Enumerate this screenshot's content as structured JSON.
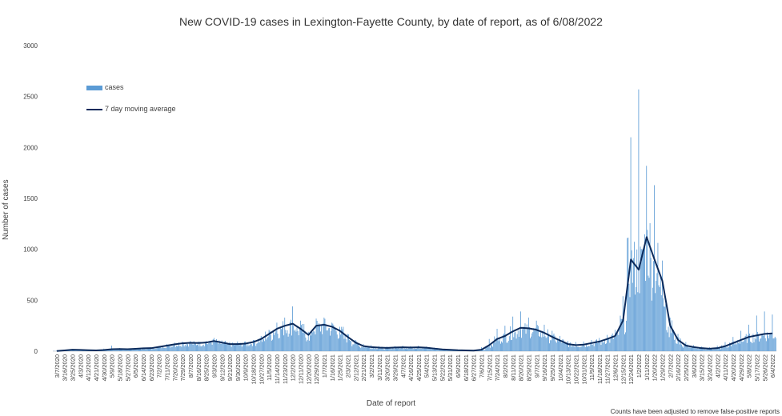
{
  "chart_data": {
    "type": "bar",
    "title": "New COVID-19 cases in Lexington-Fayette County, by date of report, as of 6/08/2022",
    "xlabel": "Date of report",
    "ylabel": "Number of cases",
    "ylim": [
      0,
      3000
    ],
    "yticks": [
      "0",
      "500",
      "1000",
      "1500",
      "2000",
      "2500",
      "3000"
    ],
    "footnote": "Counts have been adjusted to remove false-positive reports",
    "legend": {
      "bars": "cases",
      "line": "7 day moving average",
      "position": "top-left"
    },
    "colors": {
      "bars": "#5B9BD5",
      "line": "#0B2A5B"
    },
    "categories": [
      "3/7/2020",
      "3/16/2020",
      "3/25/2020",
      "4/3/2020",
      "4/12/2020",
      "4/21/2020",
      "4/30/2020",
      "5/9/2020",
      "5/18/2020",
      "5/27/2020",
      "6/5/2020",
      "6/14/2020",
      "6/23/2020",
      "7/2/2020",
      "7/11/2020",
      "7/20/2020",
      "7/29/2020",
      "8/7/2020",
      "8/16/2020",
      "8/25/2020",
      "9/3/2020",
      "9/12/2020",
      "9/21/2020",
      "9/30/2020",
      "10/9/2020",
      "10/18/2020",
      "10/27/2020",
      "11/5/2020",
      "11/14/2020",
      "11/23/2020",
      "12/2/2020",
      "12/11/2020",
      "12/20/2020",
      "12/29/2020",
      "1/7/2021",
      "1/16/2021",
      "1/25/2021",
      "2/3/2021",
      "2/12/2021",
      "2/21/2021",
      "3/2/2021",
      "3/11/2021",
      "3/20/2021",
      "3/29/2021",
      "4/7/2021",
      "4/16/2021",
      "4/25/2021",
      "5/4/2021",
      "5/13/2021",
      "5/22/2021",
      "5/31/2021",
      "6/9/2021",
      "6/18/2021",
      "6/27/2021",
      "7/6/2021",
      "7/15/2021",
      "7/24/2021",
      "8/2/2021",
      "8/11/2021",
      "8/20/2021",
      "8/29/2021",
      "9/7/2021",
      "9/16/2021",
      "9/25/2021",
      "10/4/2021",
      "10/13/2021",
      "10/22/2021",
      "10/31/2021",
      "11/9/2021",
      "11/18/2021",
      "11/27/2021",
      "12/6/2021",
      "12/15/2021",
      "12/24/2021",
      "1/2/2022",
      "1/11/2022",
      "1/20/2022",
      "1/29/2022",
      "2/7/2022",
      "2/16/2022",
      "2/25/2022",
      "3/6/2022",
      "3/15/2022",
      "3/24/2022",
      "4/2/2022",
      "4/11/2022",
      "4/20/2022",
      "4/29/2022",
      "5/8/2022",
      "5/17/2022",
      "5/26/2022",
      "6/4/2022"
    ],
    "cases_9day_peak": [
      5,
      12,
      20,
      18,
      15,
      12,
      25,
      55,
      30,
      25,
      30,
      32,
      38,
      50,
      70,
      85,
      95,
      100,
      95,
      100,
      130,
      105,
      90,
      95,
      95,
      110,
      150,
      210,
      280,
      330,
      440,
      300,
      190,
      320,
      330,
      280,
      240,
      170,
      110,
      70,
      60,
      50,
      45,
      50,
      55,
      50,
      55,
      45,
      35,
      25,
      20,
      15,
      12,
      10,
      40,
      120,
      220,
      250,
      340,
      390,
      330,
      300,
      260,
      200,
      150,
      100,
      90,
      95,
      110,
      130,
      160,
      210,
      540,
      2100,
      2570,
      1820,
      1630,
      890,
      330,
      170,
      90,
      60,
      45,
      40,
      55,
      90,
      140,
      200,
      260,
      350,
      390,
      360
    ],
    "moving_average": [
      2,
      8,
      15,
      13,
      10,
      8,
      12,
      20,
      22,
      20,
      24,
      28,
      30,
      42,
      55,
      68,
      78,
      82,
      80,
      85,
      100,
      85,
      70,
      70,
      75,
      90,
      120,
      170,
      220,
      250,
      270,
      220,
      160,
      250,
      260,
      240,
      200,
      140,
      85,
      50,
      40,
      35,
      32,
      36,
      38,
      36,
      38,
      34,
      26,
      18,
      14,
      10,
      8,
      6,
      15,
      60,
      120,
      150,
      195,
      230,
      225,
      210,
      180,
      140,
      105,
      70,
      60,
      65,
      80,
      95,
      120,
      150,
      300,
      900,
      800,
      1120,
      900,
      690,
      250,
      110,
      55,
      40,
      30,
      25,
      30,
      50,
      80,
      110,
      140,
      155,
      170,
      175
    ]
  }
}
